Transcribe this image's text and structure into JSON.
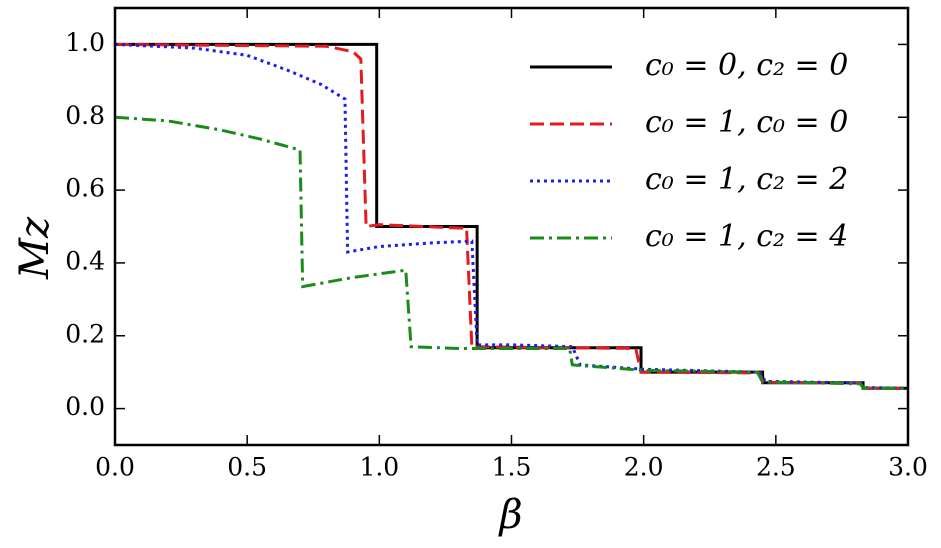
{
  "chart_data": {
    "type": "line",
    "xlabel": "β",
    "ylabel": "Mz",
    "xlim": [
      0,
      3
    ],
    "ylim": [
      -0.1,
      1.1
    ],
    "xticks": [
      {
        "value": 0,
        "label": "0.0"
      },
      {
        "value": 0.5,
        "label": "0.5"
      },
      {
        "value": 1,
        "label": "1.0"
      },
      {
        "value": 1.5,
        "label": "1.5"
      },
      {
        "value": 2,
        "label": "2.0"
      },
      {
        "value": 2.5,
        "label": "2.5"
      },
      {
        "value": 3,
        "label": "3.0"
      }
    ],
    "yticks": [
      {
        "value": 0,
        "label": "0.0"
      },
      {
        "value": 0.2,
        "label": "0.2"
      },
      {
        "value": 0.4,
        "label": "0.4"
      },
      {
        "value": 0.6,
        "label": "0.6"
      },
      {
        "value": 0.8,
        "label": "0.8"
      },
      {
        "value": 1,
        "label": "1.0"
      }
    ],
    "legend": "upper right",
    "series": [
      {
        "name": "c₀ = 0, c₂ = 0",
        "color": "#000000",
        "dash": "solid",
        "x": [
          0,
          0.99,
          0.99,
          1.37,
          1.37,
          1.99,
          1.99,
          2.45,
          2.45,
          2.83,
          2.83,
          3
        ],
        "values": [
          1,
          1,
          0.5,
          0.5,
          0.167,
          0.167,
          0.1,
          0.1,
          0.071,
          0.071,
          0.056,
          0.056
        ]
      },
      {
        "name": "c₀ = 1, c₀ = 0",
        "color": "#e41a1c",
        "dash": "dashed",
        "x": [
          0,
          0.8,
          0.9,
          0.93,
          0.95,
          1.0,
          1.33,
          1.35,
          1.97,
          1.99,
          2.44,
          2.45,
          2.82,
          2.83,
          3
        ],
        "values": [
          1,
          0.995,
          0.98,
          0.96,
          0.5,
          0.505,
          0.495,
          0.17,
          0.165,
          0.1,
          0.098,
          0.072,
          0.07,
          0.056,
          0.055
        ]
      },
      {
        "name": "c₀ = 1, c₂ = 2",
        "color": "#1f1fe6",
        "dash": "dotted",
        "x": [
          0,
          0.3,
          0.5,
          0.65,
          0.78,
          0.87,
          0.88,
          1.0,
          1.2,
          1.35,
          1.37,
          1.5,
          1.73,
          1.76,
          2.0,
          2.44,
          2.46,
          2.82,
          2.84,
          3
        ],
        "values": [
          1,
          0.99,
          0.97,
          0.93,
          0.89,
          0.85,
          0.43,
          0.445,
          0.455,
          0.46,
          0.175,
          0.175,
          0.17,
          0.12,
          0.108,
          0.1,
          0.075,
          0.07,
          0.058,
          0.056
        ]
      },
      {
        "name": "c₀ = 1, c₂ = 4",
        "color": "#1a8a1a",
        "dash": "dashdot",
        "x": [
          0,
          0.2,
          0.4,
          0.55,
          0.7,
          0.71,
          0.9,
          1.1,
          1.12,
          1.3,
          1.72,
          1.73,
          2.0,
          2.43,
          2.45,
          2.82,
          2.83,
          3
        ],
        "values": [
          0.8,
          0.79,
          0.765,
          0.74,
          0.71,
          0.335,
          0.36,
          0.38,
          0.17,
          0.165,
          0.165,
          0.12,
          0.105,
          0.1,
          0.073,
          0.068,
          0.057,
          0.055
        ]
      }
    ]
  }
}
